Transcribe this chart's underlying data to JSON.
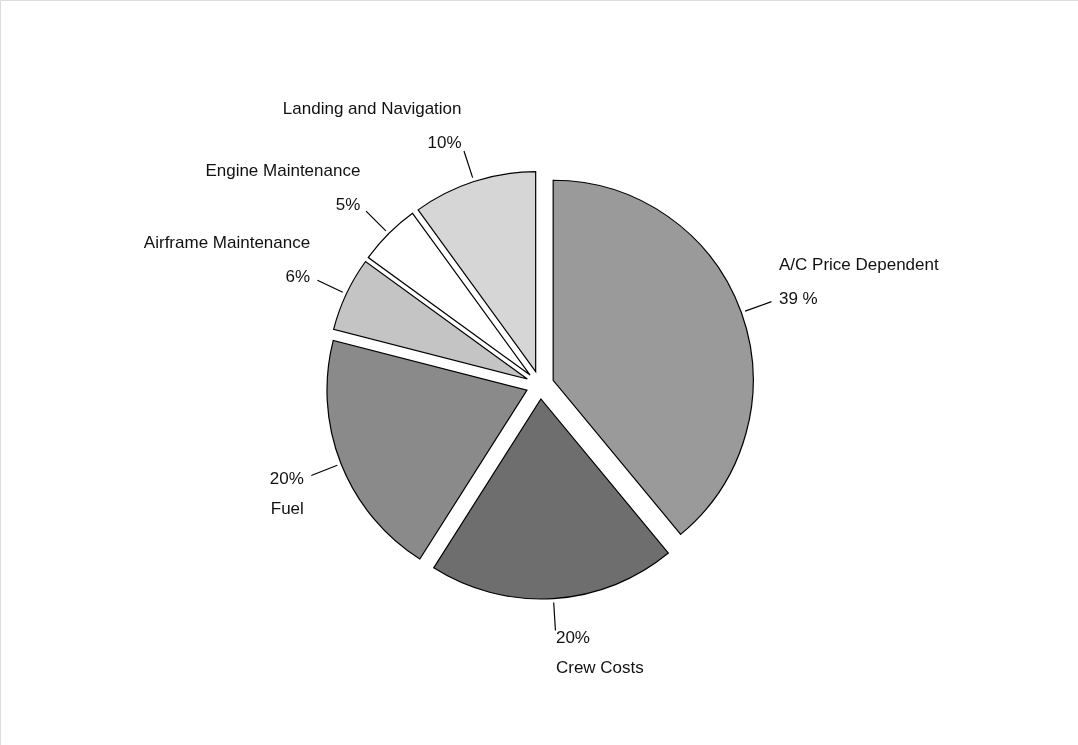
{
  "chart_data": {
    "type": "pie",
    "categories": [
      "A/C Price Dependent",
      "Crew Costs",
      "Fuel",
      "Airframe Maintenance",
      "Engine Maintenance",
      "Landing and Navigation"
    ],
    "values": [
      39,
      20,
      20,
      6,
      5,
      10
    ],
    "colors": [
      "#9a9a9a",
      "#6e6e6e",
      "#8a8a8a",
      "#c4c4c4",
      "#ffffff",
      "#d6d6d6"
    ],
    "value_labels": [
      "39 %",
      "20%",
      "20%",
      "6%",
      "5%",
      "10%"
    ]
  }
}
